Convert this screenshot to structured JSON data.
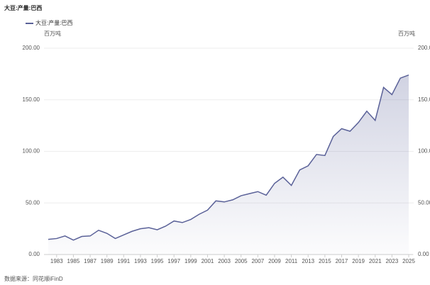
{
  "chart_data": {
    "type": "line",
    "title": "大豆:产量:巴西",
    "y_unit": "百万吨",
    "y2_unit": "百万吨",
    "source": "数据来源：同花顺iFinD",
    "x": [
      1982,
      1983,
      1984,
      1985,
      1986,
      1987,
      1988,
      1989,
      1990,
      1991,
      1992,
      1993,
      1994,
      1995,
      1996,
      1997,
      1998,
      1999,
      2000,
      2001,
      2002,
      2003,
      2004,
      2005,
      2006,
      2007,
      2008,
      2009,
      2010,
      2011,
      2012,
      2013,
      2014,
      2015,
      2016,
      2017,
      2018,
      2019,
      2020,
      2021,
      2022,
      2023,
      2024,
      2025
    ],
    "series": [
      {
        "name": "大豆:产量:巴西",
        "color": "#5a6198",
        "values": [
          14.7,
          15.5,
          18,
          14,
          17.5,
          18,
          23.5,
          20.5,
          15.5,
          19,
          22.5,
          25,
          26,
          24,
          27.5,
          32.5,
          31,
          34,
          39,
          43,
          52,
          51,
          53,
          57,
          59,
          61,
          57.5,
          69,
          75,
          67,
          82,
          86,
          97,
          96,
          114.5,
          122,
          119.5,
          128,
          139,
          130,
          162,
          155,
          171,
          174
        ]
      }
    ],
    "xlim": [
      1982,
      2025
    ],
    "xticks": [
      1983,
      1985,
      1987,
      1989,
      1991,
      1993,
      1995,
      1997,
      1999,
      2001,
      2003,
      2005,
      2007,
      2009,
      2011,
      2013,
      2015,
      2017,
      2019,
      2021,
      2023,
      2025
    ],
    "ylim": [
      0,
      200
    ],
    "yticks": [
      {
        "value": 0,
        "label": "0.00"
      },
      {
        "value": 50,
        "label": "50.00"
      },
      {
        "value": 100,
        "label": "100.00"
      },
      {
        "value": 150,
        "label": "150.00"
      },
      {
        "value": 200,
        "label": "200.00"
      }
    ],
    "y2lim": [
      0,
      200
    ],
    "y2ticks": [
      {
        "value": 0,
        "label": "0.00"
      },
      {
        "value": 50,
        "label": "50.00"
      },
      {
        "value": 100,
        "label": "100.0"
      },
      {
        "value": 150,
        "label": "150.0"
      },
      {
        "value": 200,
        "label": "200.0"
      }
    ],
    "grid": true,
    "legend": "top-left"
  }
}
